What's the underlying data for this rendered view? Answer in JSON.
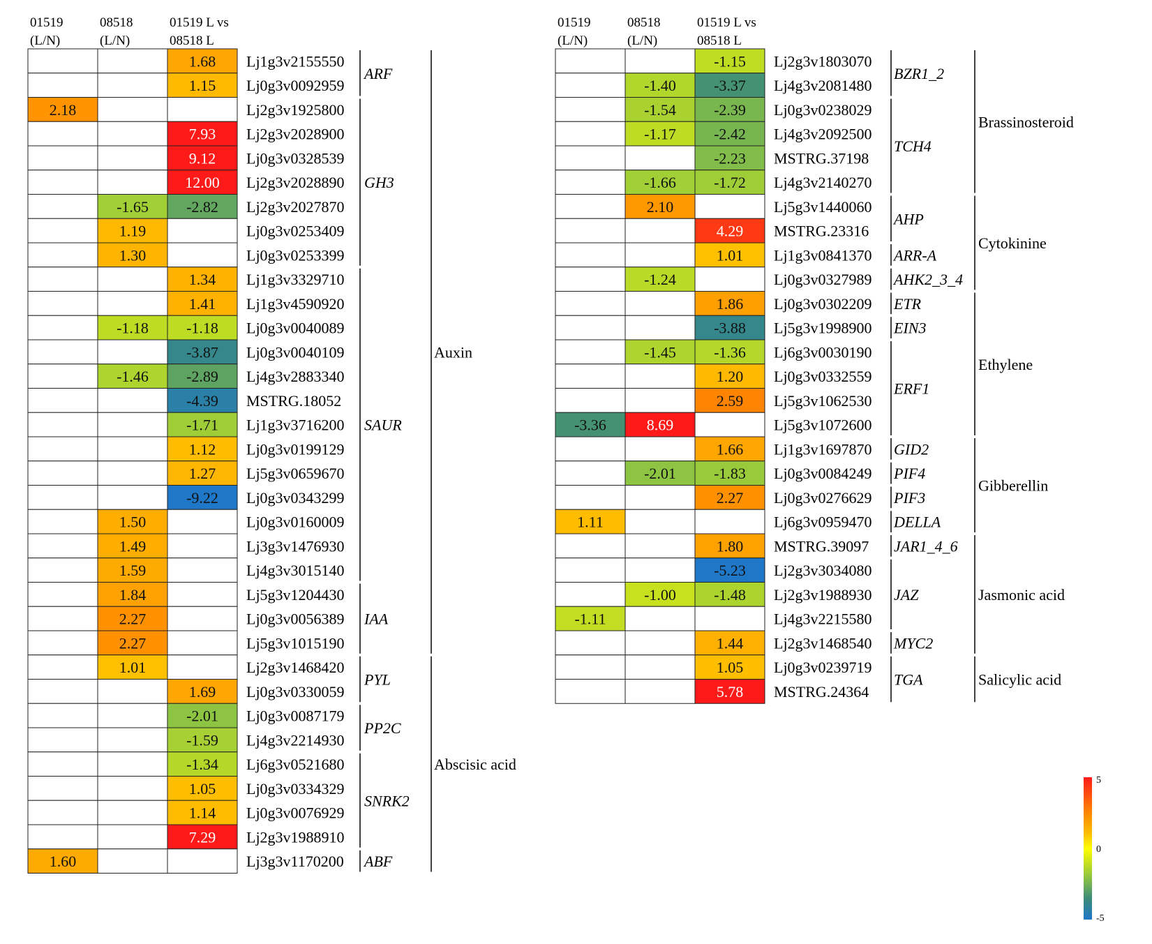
{
  "chart_data": {
    "type": "heatmap",
    "color_scale": {
      "min": -5,
      "mid": 0,
      "max": 5,
      "labels": [
        "5",
        "0",
        "-5"
      ]
    },
    "colors": {
      "neg": "#1f77c8",
      "mid": "#ffff00",
      "pos": "#ff1a1a",
      "grid": "#000000"
    },
    "panels": [
      {
        "columns": [
          {
            "line1": "01519",
            "line2": "(L/N)"
          },
          {
            "line1": "08518",
            "line2": "(L/N)"
          },
          {
            "line1": "01519 L vs",
            "line2": "08518 L"
          }
        ],
        "rows": [
          {
            "gene": "Lj1g3v2155550",
            "values": [
              null,
              null,
              1.68
            ]
          },
          {
            "gene": "Lj0g3v0092959",
            "values": [
              null,
              null,
              1.15
            ]
          },
          {
            "gene": "Lj2g3v1925800",
            "values": [
              2.18,
              null,
              null
            ]
          },
          {
            "gene": "Lj2g3v2028900",
            "values": [
              null,
              null,
              7.93
            ]
          },
          {
            "gene": "Lj0g3v0328539",
            "values": [
              null,
              null,
              9.12
            ]
          },
          {
            "gene": "Lj2g3v2028890",
            "values": [
              null,
              null,
              12.0
            ]
          },
          {
            "gene": "Lj2g3v2027870",
            "values": [
              null,
              -1.65,
              -2.82
            ]
          },
          {
            "gene": "Lj0g3v0253409",
            "values": [
              null,
              1.19,
              null
            ]
          },
          {
            "gene": "Lj0g3v0253399",
            "values": [
              null,
              1.3,
              null
            ]
          },
          {
            "gene": "Lj1g3v3329710",
            "values": [
              null,
              null,
              1.34
            ]
          },
          {
            "gene": "Lj1g3v4590920",
            "values": [
              null,
              null,
              1.41
            ]
          },
          {
            "gene": "Lj0g3v0040089",
            "values": [
              null,
              -1.18,
              -1.18
            ]
          },
          {
            "gene": "Lj0g3v0040109",
            "values": [
              null,
              null,
              -3.87
            ]
          },
          {
            "gene": "Lj4g3v2883340",
            "values": [
              null,
              -1.46,
              -2.89
            ]
          },
          {
            "gene": "MSTRG.18052",
            "values": [
              null,
              null,
              -4.39
            ]
          },
          {
            "gene": "Lj1g3v3716200",
            "values": [
              null,
              null,
              -1.71
            ]
          },
          {
            "gene": "Lj0g3v0199129",
            "values": [
              null,
              null,
              1.12
            ]
          },
          {
            "gene": "Lj5g3v0659670",
            "values": [
              null,
              null,
              1.27
            ]
          },
          {
            "gene": "Lj0g3v0343299",
            "values": [
              null,
              null,
              -9.22
            ]
          },
          {
            "gene": "Lj0g3v0160009",
            "values": [
              null,
              1.5,
              null
            ]
          },
          {
            "gene": "Lj3g3v1476930",
            "values": [
              null,
              1.49,
              null
            ]
          },
          {
            "gene": "Lj4g3v3015140",
            "values": [
              null,
              1.59,
              null
            ]
          },
          {
            "gene": "Lj5g3v1204430",
            "values": [
              null,
              1.84,
              null
            ]
          },
          {
            "gene": "Lj0g3v0056389",
            "values": [
              null,
              2.27,
              null
            ]
          },
          {
            "gene": "Lj5g3v1015190",
            "values": [
              null,
              2.27,
              null
            ]
          },
          {
            "gene": "Lj2g3v1468420",
            "values": [
              null,
              1.01,
              null
            ]
          },
          {
            "gene": "Lj0g3v0330059",
            "values": [
              null,
              null,
              1.69
            ]
          },
          {
            "gene": "Lj0g3v0087179",
            "values": [
              null,
              null,
              -2.01
            ]
          },
          {
            "gene": "Lj4g3v2214930",
            "values": [
              null,
              null,
              -1.59
            ]
          },
          {
            "gene": "Lj6g3v0521680",
            "values": [
              null,
              null,
              -1.34
            ]
          },
          {
            "gene": "Lj0g3v0334329",
            "values": [
              null,
              null,
              1.05
            ]
          },
          {
            "gene": "Lj0g3v0076929",
            "values": [
              null,
              null,
              1.14
            ]
          },
          {
            "gene": "Lj2g3v1988910",
            "values": [
              null,
              null,
              7.29
            ]
          },
          {
            "gene": "Lj3g3v1170200",
            "values": [
              1.6,
              null,
              null
            ]
          }
        ],
        "families": [
          {
            "name": "ARF",
            "start": 0,
            "end": 1
          },
          {
            "name": "GH3",
            "start": 2,
            "end": 8
          },
          {
            "name": "SAUR",
            "start": 9,
            "end": 21
          },
          {
            "name": "IAA",
            "start": 22,
            "end": 24
          },
          {
            "name": "PYL",
            "start": 25,
            "end": 26
          },
          {
            "name": "PP2C",
            "start": 27,
            "end": 28
          },
          {
            "name": "SNRK2",
            "start": 29,
            "end": 32
          },
          {
            "name": "ABF",
            "start": 33,
            "end": 33
          }
        ],
        "hormones": [
          {
            "name": "Auxin",
            "start": 0,
            "end": 24
          },
          {
            "name": "Abscisic acid",
            "start": 25,
            "end": 33
          }
        ]
      },
      {
        "columns": [
          {
            "line1": "01519",
            "line2": "(L/N)"
          },
          {
            "line1": "08518",
            "line2": "(L/N)"
          },
          {
            "line1": "01519 L vs",
            "line2": "08518 L"
          }
        ],
        "rows": [
          {
            "gene": "Lj2g3v1803070",
            "values": [
              null,
              null,
              -1.15
            ]
          },
          {
            "gene": "Lj4g3v2081480",
            "values": [
              null,
              -1.4,
              -3.37
            ]
          },
          {
            "gene": "Lj0g3v0238029",
            "values": [
              null,
              -1.54,
              -2.39
            ]
          },
          {
            "gene": "Lj4g3v2092500",
            "values": [
              null,
              -1.17,
              -2.42
            ]
          },
          {
            "gene": "MSTRG.37198",
            "values": [
              null,
              null,
              -2.23
            ]
          },
          {
            "gene": "Lj4g3v2140270",
            "values": [
              null,
              -1.66,
              -1.72
            ]
          },
          {
            "gene": "Lj5g3v1440060",
            "values": [
              null,
              2.1,
              null
            ]
          },
          {
            "gene": "MSTRG.23316",
            "values": [
              null,
              null,
              4.29
            ]
          },
          {
            "gene": "Lj1g3v0841370",
            "values": [
              null,
              null,
              1.01
            ]
          },
          {
            "gene": "Lj0g3v0327989",
            "values": [
              null,
              -1.24,
              null
            ]
          },
          {
            "gene": "Lj0g3v0302209",
            "values": [
              null,
              null,
              1.86
            ]
          },
          {
            "gene": "Lj5g3v1998900",
            "values": [
              null,
              null,
              -3.88
            ]
          },
          {
            "gene": "Lj6g3v0030190",
            "values": [
              null,
              -1.45,
              -1.36
            ]
          },
          {
            "gene": "Lj0g3v0332559",
            "values": [
              null,
              null,
              1.2
            ]
          },
          {
            "gene": "Lj5g3v1062530",
            "values": [
              null,
              null,
              2.59
            ]
          },
          {
            "gene": "Lj5g3v1072600",
            "values": [
              -3.36,
              8.69,
              null
            ]
          },
          {
            "gene": "Lj1g3v1697870",
            "values": [
              null,
              null,
              1.66
            ]
          },
          {
            "gene": "Lj0g3v0084249",
            "values": [
              null,
              -2.01,
              -1.83
            ]
          },
          {
            "gene": "Lj0g3v0276629",
            "values": [
              null,
              null,
              2.27
            ]
          },
          {
            "gene": "Lj6g3v0959470",
            "values": [
              1.11,
              null,
              null
            ]
          },
          {
            "gene": "MSTRG.39097",
            "values": [
              null,
              null,
              1.8
            ]
          },
          {
            "gene": "Lj2g3v3034080",
            "values": [
              null,
              null,
              -5.23
            ]
          },
          {
            "gene": "Lj2g3v1988930",
            "values": [
              null,
              -1.0,
              -1.48
            ]
          },
          {
            "gene": "Lj4g3v2215580",
            "values": [
              -1.11,
              null,
              null
            ]
          },
          {
            "gene": "Lj2g3v1468540",
            "values": [
              null,
              null,
              1.44
            ]
          },
          {
            "gene": "Lj0g3v0239719",
            "values": [
              null,
              null,
              1.05
            ]
          },
          {
            "gene": "MSTRG.24364",
            "values": [
              null,
              null,
              5.78
            ]
          }
        ],
        "families": [
          {
            "name": "BZR1_2",
            "start": 0,
            "end": 1
          },
          {
            "name": "TCH4",
            "start": 2,
            "end": 5
          },
          {
            "name": "AHP",
            "start": 6,
            "end": 7
          },
          {
            "name": "ARR-A",
            "start": 8,
            "end": 8
          },
          {
            "name": "AHK2_3_4",
            "start": 9,
            "end": 9
          },
          {
            "name": "ETR",
            "start": 10,
            "end": 10
          },
          {
            "name": "EIN3",
            "start": 11,
            "end": 11
          },
          {
            "name": "ERF1",
            "start": 12,
            "end": 15
          },
          {
            "name": "GID2",
            "start": 16,
            "end": 16
          },
          {
            "name": "PIF4",
            "start": 17,
            "end": 17
          },
          {
            "name": "PIF3",
            "start": 18,
            "end": 18
          },
          {
            "name": "DELLA",
            "start": 19,
            "end": 19
          },
          {
            "name": "JAR1_4_6",
            "start": 20,
            "end": 20
          },
          {
            "name": "JAZ",
            "start": 21,
            "end": 23
          },
          {
            "name": "MYC2",
            "start": 24,
            "end": 24
          },
          {
            "name": "TGA",
            "start": 25,
            "end": 26
          }
        ],
        "hormones": [
          {
            "name": "Brassinosteroid",
            "start": 0,
            "end": 5
          },
          {
            "name": "Cytokinine",
            "start": 6,
            "end": 9
          },
          {
            "name": "Ethylene",
            "start": 10,
            "end": 15
          },
          {
            "name": "Gibberellin",
            "start": 16,
            "end": 19
          },
          {
            "name": "Jasmonic acid",
            "start": 20,
            "end": 24
          },
          {
            "name": "Salicylic acid",
            "start": 25,
            "end": 26
          }
        ]
      }
    ]
  }
}
